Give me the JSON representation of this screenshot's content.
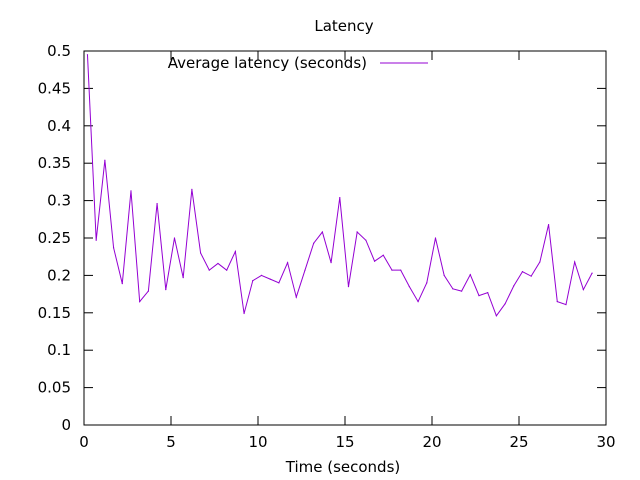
{
  "chart_data": {
    "type": "line",
    "title": "Latency",
    "xlabel": "Time (seconds)",
    "ylabel": "",
    "xlim": [
      0,
      30
    ],
    "ylim": [
      0,
      0.5
    ],
    "xticks": [
      0,
      5,
      10,
      15,
      20,
      25,
      30
    ],
    "yticks": [
      0,
      0.05,
      0.1,
      0.15,
      0.2,
      0.25,
      0.3,
      0.35,
      0.4,
      0.45,
      0.5
    ],
    "ytick_labels": [
      "0",
      "0.05",
      "0.1",
      "0.15",
      "0.2",
      "0.25",
      "0.3",
      "0.35",
      "0.4",
      "0.45",
      "0.5"
    ],
    "xtick_labels": [
      "0",
      "5",
      "10",
      "15",
      "20",
      "25",
      "30"
    ],
    "grid": false,
    "legend_position": "top",
    "series": [
      {
        "name": "Average latency (seconds)",
        "color": "#9400d3",
        "x": [
          0.2,
          0.7,
          1.2,
          1.7,
          2.2,
          2.7,
          3.2,
          3.7,
          4.2,
          4.7,
          5.2,
          5.7,
          6.2,
          6.7,
          7.2,
          7.7,
          8.2,
          8.7,
          9.2,
          9.7,
          10.2,
          10.7,
          11.2,
          11.7,
          12.2,
          12.7,
          13.2,
          13.7,
          14.2,
          14.7,
          15.2,
          15.7,
          16.2,
          16.7,
          17.2,
          17.7,
          18.2,
          18.7,
          19.2,
          19.7,
          20.2,
          20.7,
          21.2,
          21.7,
          22.2,
          22.7,
          23.2,
          23.7,
          24.2,
          24.7,
          25.2,
          25.7,
          26.2,
          26.7,
          27.2,
          27.7,
          28.2,
          28.7,
          29.2
        ],
        "y": [
          0.495,
          0.247,
          0.354,
          0.237,
          0.189,
          0.313,
          0.165,
          0.179,
          0.296,
          0.181,
          0.25,
          0.197,
          0.315,
          0.23,
          0.207,
          0.216,
          0.207,
          0.232,
          0.149,
          0.193,
          0.2,
          0.195,
          0.19,
          0.217,
          0.171,
          0.207,
          0.243,
          0.258,
          0.217,
          0.304,
          0.185,
          0.258,
          0.247,
          0.219,
          0.227,
          0.207,
          0.207,
          0.185,
          0.165,
          0.19,
          0.25,
          0.2,
          0.182,
          0.179,
          0.201,
          0.173,
          0.177,
          0.146,
          0.162,
          0.186,
          0.205,
          0.199,
          0.218,
          0.268,
          0.165,
          0.161,
          0.218,
          0.181,
          0.203
        ]
      }
    ]
  }
}
